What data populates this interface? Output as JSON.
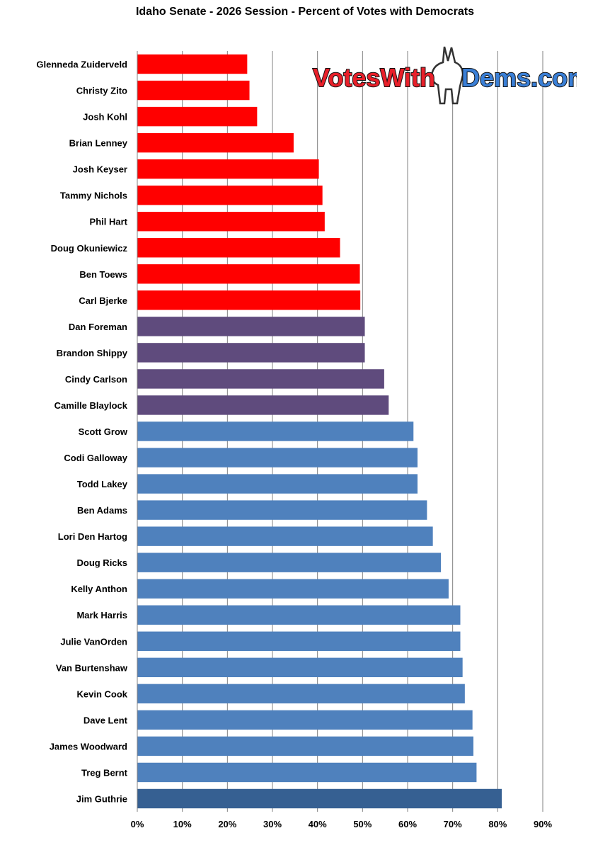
{
  "title": "Idaho Senate - 2026 Session - Percent of Votes with Democrats",
  "logo": {
    "part1": "VotesWith",
    "part2": "Dems.com",
    "color1": "#e8202a",
    "color2": "#3a7fd6"
  },
  "colors": {
    "red": "#ff0000",
    "purple": "#5f4b7d",
    "blue": "#4f81bd",
    "darkblue": "#366092",
    "grid": "#808080"
  },
  "chart_data": {
    "type": "bar",
    "orientation": "horizontal",
    "title": "Idaho Senate - 2026 Session - Percent of Votes with Democrats",
    "xlabel": "",
    "ylabel": "",
    "xlim": [
      0,
      90
    ],
    "xticks": [
      "0%",
      "10%",
      "20%",
      "30%",
      "40%",
      "50%",
      "60%",
      "70%",
      "80%",
      "90%"
    ],
    "grid": true,
    "categories": [
      "Glenneda Zuiderveld",
      "Christy Zito",
      "Josh Kohl",
      "Brian Lenney",
      "Josh Keyser",
      "Tammy Nichols",
      "Phil Hart",
      "Doug Okuniewicz",
      "Ben Toews",
      "Carl Bjerke",
      "Dan Foreman",
      "Brandon Shippy",
      "Cindy Carlson",
      "Camille Blaylock",
      "Scott Grow",
      "Codi Galloway",
      "Todd Lakey",
      "Ben Adams",
      "Lori Den Hartog",
      "Doug Ricks",
      "Kelly Anthon",
      "Mark Harris",
      "Julie VanOrden",
      "Van Burtenshaw",
      "Kevin Cook",
      "Dave Lent",
      "James Woodward",
      "Treg Bernt",
      "Jim Guthrie"
    ],
    "values": [
      24.4,
      24.9,
      26.6,
      34.7,
      40.3,
      41.1,
      41.6,
      45.0,
      49.4,
      49.5,
      50.5,
      50.5,
      54.8,
      55.8,
      61.3,
      62.2,
      62.2,
      64.3,
      65.6,
      67.4,
      69.1,
      71.7,
      71.7,
      72.2,
      72.7,
      74.4,
      74.6,
      75.3,
      80.9
    ],
    "bar_colors": [
      "red",
      "red",
      "red",
      "red",
      "red",
      "red",
      "red",
      "red",
      "red",
      "red",
      "purple",
      "purple",
      "purple",
      "purple",
      "blue",
      "blue",
      "blue",
      "blue",
      "blue",
      "blue",
      "blue",
      "blue",
      "blue",
      "blue",
      "blue",
      "blue",
      "blue",
      "blue",
      "darkblue"
    ]
  }
}
